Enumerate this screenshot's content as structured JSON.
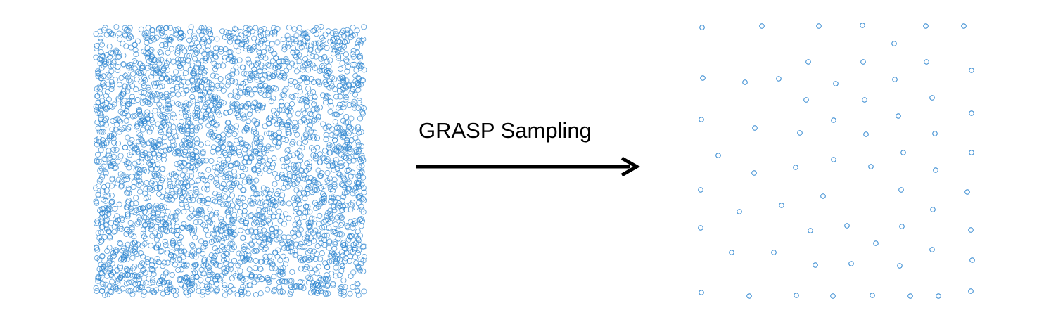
{
  "caption": "GRASP Sampling",
  "colors": {
    "point": "#2e86d0",
    "arrow": "#000000",
    "background": "#ffffff"
  },
  "panels": {
    "left": {
      "description_kind": "dense-random-cloud",
      "point_count": 3200,
      "marker": "hollow-circle"
    },
    "right": {
      "description_kind": "sparse-sampled-set",
      "marker": "hollow-circle"
    }
  }
}
